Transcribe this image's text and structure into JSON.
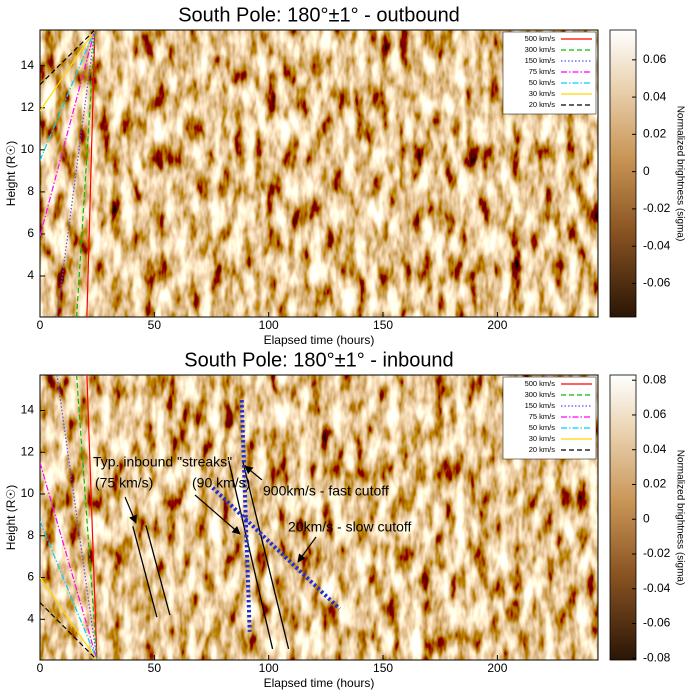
{
  "chart_data": [
    {
      "type": "line",
      "title": "South Pole: 180°±1° - outbound",
      "xlabel": "Elapsed time (hours)",
      "ylabel": "Height (R☉)",
      "xlim": [
        0,
        244
      ],
      "ylim": [
        2.05,
        15.7
      ],
      "xticks": [
        0,
        50,
        100,
        150,
        200
      ],
      "yticks": [
        4,
        6,
        8,
        10,
        12,
        14
      ],
      "colorbar": {
        "label": "Normalized brightness (sigma)",
        "clim": [
          -0.078,
          0.076
        ],
        "ticks": [
          0.06,
          0.04,
          0.02,
          0,
          -0.02,
          -0.04,
          -0.06
        ]
      },
      "legend": "upper right",
      "series": [
        {
          "name": "500 km/s",
          "color": "#ff0000",
          "dash": "solid",
          "x": [
            20.5,
            24
          ],
          "y": [
            2.05,
            15.7
          ]
        },
        {
          "name": "300 km/s",
          "color": "#00c000",
          "dash": "dashed",
          "x": [
            16,
            24
          ],
          "y": [
            2.05,
            15.7
          ]
        },
        {
          "name": "150 km/s",
          "color": "#5050ff",
          "dash": "dotted",
          "x": [
            7.4,
            24
          ],
          "y": [
            2.05,
            15.7
          ]
        },
        {
          "name": "75 km/s",
          "color": "#ff00ff",
          "dash": "dashdot",
          "x": [
            0,
            24
          ],
          "y": [
            5.9,
            15.7
          ]
        },
        {
          "name": "50 km/s",
          "color": "#00d0ff",
          "dash": "dashdot",
          "x": [
            0,
            24
          ],
          "y": [
            9.5,
            15.7
          ]
        },
        {
          "name": "30 km/s",
          "color": "#ffd800",
          "dash": "solid",
          "x": [
            0,
            24
          ],
          "y": [
            11.85,
            15.7
          ]
        },
        {
          "name": "20 km/s",
          "color": "#000000",
          "dash": "dashed",
          "x": [
            0,
            24
          ],
          "y": [
            13.1,
            15.7
          ]
        }
      ]
    },
    {
      "type": "line",
      "title": "South Pole: 180°±1° - inbound",
      "xlabel": "Elapsed time (hours)",
      "ylabel": "Height (R☉)",
      "xlim": [
        0,
        244
      ],
      "ylim": [
        2.05,
        15.7
      ],
      "xticks": [
        0,
        50,
        100,
        150,
        200
      ],
      "yticks": [
        4,
        6,
        8,
        10,
        12,
        14
      ],
      "colorbar": {
        "label": "Normalized brightness (sigma)",
        "clim": [
          -0.081,
          0.083
        ],
        "ticks": [
          0.08,
          0.06,
          0.04,
          0.02,
          0,
          -0.02,
          -0.04,
          -0.06,
          -0.08
        ]
      },
      "legend": "upper right",
      "series": [
        {
          "name": "500 km/s",
          "color": "#ff0000",
          "dash": "solid",
          "x": [
            20.5,
            24.9
          ],
          "y": [
            15.7,
            2.05
          ]
        },
        {
          "name": "300 km/s",
          "color": "#00c000",
          "dash": "dashed",
          "x": [
            16,
            24.9
          ],
          "y": [
            15.7,
            2.05
          ]
        },
        {
          "name": "150 km/s",
          "color": "#5050ff",
          "dash": "dotted",
          "x": [
            7.4,
            24.9
          ],
          "y": [
            15.7,
            2.05
          ]
        },
        {
          "name": "75 km/s",
          "color": "#ff00ff",
          "dash": "dashdot",
          "x": [
            0,
            24.9
          ],
          "y": [
            11.5,
            2.05
          ]
        },
        {
          "name": "50 km/s",
          "color": "#00d0ff",
          "dash": "dashdot",
          "x": [
            0,
            24.9
          ],
          "y": [
            8.7,
            2.05
          ]
        },
        {
          "name": "30 km/s",
          "color": "#ffd800",
          "dash": "solid",
          "x": [
            0,
            24.9
          ],
          "y": [
            6,
            2.05
          ]
        },
        {
          "name": "20 km/s",
          "color": "#000000",
          "dash": "dashed",
          "x": [
            0,
            24.9
          ],
          "y": [
            4.8,
            2.05
          ]
        }
      ],
      "annotation_lines": [
        {
          "color": "#000000",
          "style": "solid",
          "x": [
            40.6,
            51.1
          ],
          "y": [
            8.45,
            4.1
          ]
        },
        {
          "color": "#000000",
          "style": "solid",
          "x": [
            46.3,
            56.8
          ],
          "y": [
            8.5,
            4.2
          ]
        },
        {
          "color": "#000000",
          "style": "solid",
          "x": [
            82.5,
            101.7
          ],
          "y": [
            11.6,
            2.58
          ]
        },
        {
          "color": "#000000",
          "style": "solid",
          "x": [
            88.6,
            108.7
          ],
          "y": [
            11.6,
            2.58
          ]
        },
        {
          "color": "#2030d0",
          "style": "dotted",
          "x": [
            88.2,
            91.7
          ],
          "y": [
            14.5,
            3.4
          ]
        },
        {
          "color": "#2030d0",
          "style": "dotted",
          "x": [
            75.5,
            131
          ],
          "y": [
            10.3,
            4.5
          ]
        }
      ],
      "annotations": [
        "Typ. inbound \"streaks\"",
        "(75 km/s)",
        "(90 km/s)",
        "900km/s - fast cutoff",
        "20km/s - slow cutoff"
      ]
    }
  ]
}
